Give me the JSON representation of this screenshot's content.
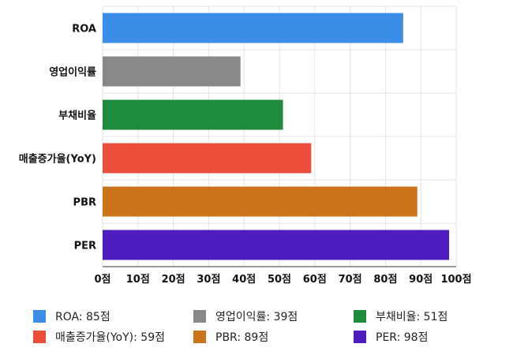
{
  "chart_data": {
    "type": "bar",
    "orientation": "horizontal",
    "categories": [
      "ROA",
      "영업이익률",
      "부채비율",
      "매출증가율(YoY)",
      "PBR",
      "PER"
    ],
    "values": [
      85,
      39,
      51,
      59,
      89,
      98
    ],
    "colors": [
      "#3b8ee8",
      "#888888",
      "#1f8b3c",
      "#ea4d3a",
      "#cc7419",
      "#4f1dbf"
    ],
    "xlim": [
      0,
      100
    ],
    "x_ticks": [
      0,
      10,
      20,
      30,
      40,
      50,
      60,
      70,
      80,
      90,
      100
    ],
    "tick_suffix": "점",
    "grid": true,
    "legend": {
      "placement": "bottom",
      "items": [
        {
          "label": "ROA: 85점",
          "color": "#3b8ee8"
        },
        {
          "label": "영업이익률: 39점",
          "color": "#888888"
        },
        {
          "label": "부채비율: 51점",
          "color": "#1f8b3c"
        },
        {
          "label": "매출증가율(YoY): 59점",
          "color": "#ea4d3a"
        },
        {
          "label": "PBR: 89점",
          "color": "#cc7419"
        },
        {
          "label": "PER: 98점",
          "color": "#4f1dbf"
        }
      ]
    }
  }
}
